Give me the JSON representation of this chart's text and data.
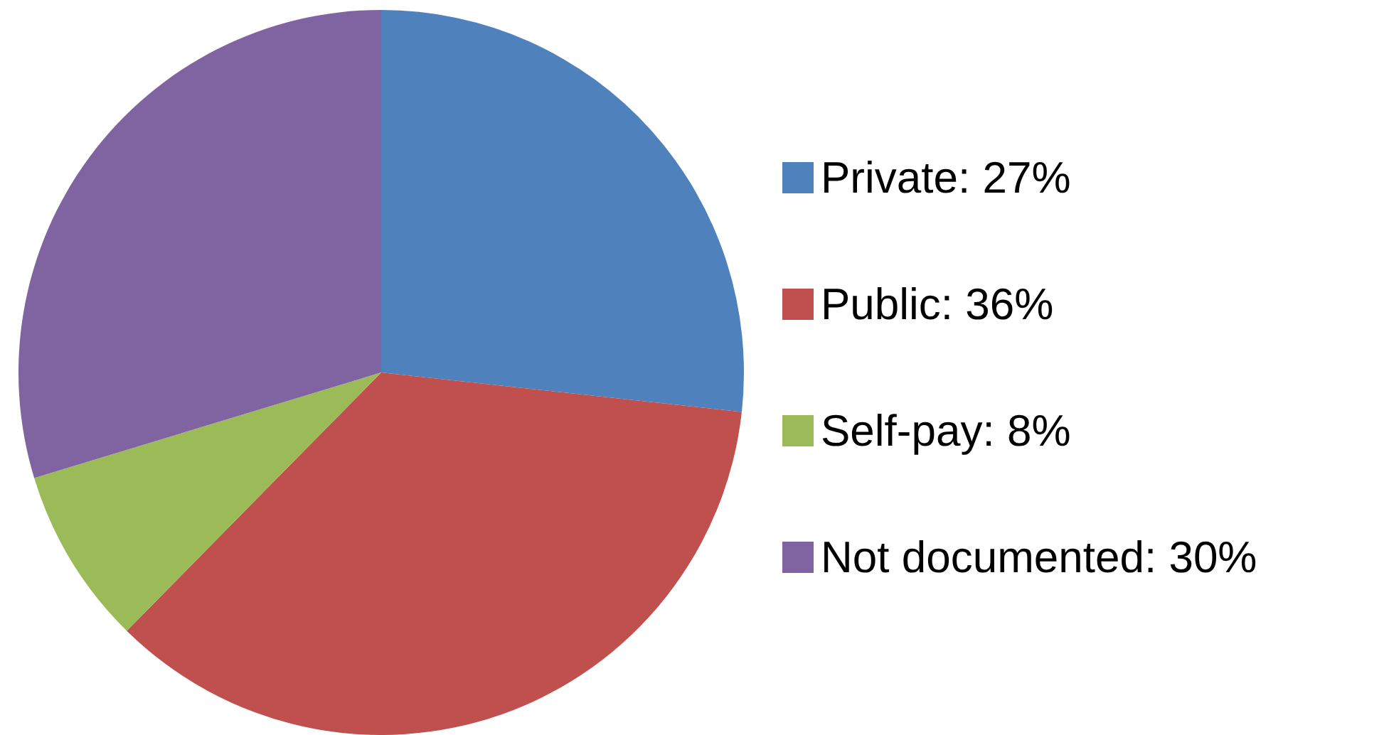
{
  "chart_data": {
    "type": "pie",
    "categories": [
      "Private: 27%",
      "Public: 36%",
      "Self-pay: 8%",
      "Not documented: 30%"
    ],
    "values": [
      27,
      36,
      8,
      30
    ],
    "colors": [
      "#4f81bd",
      "#c0504d",
      "#9bbb59",
      "#8064a2"
    ],
    "legend": "right"
  }
}
